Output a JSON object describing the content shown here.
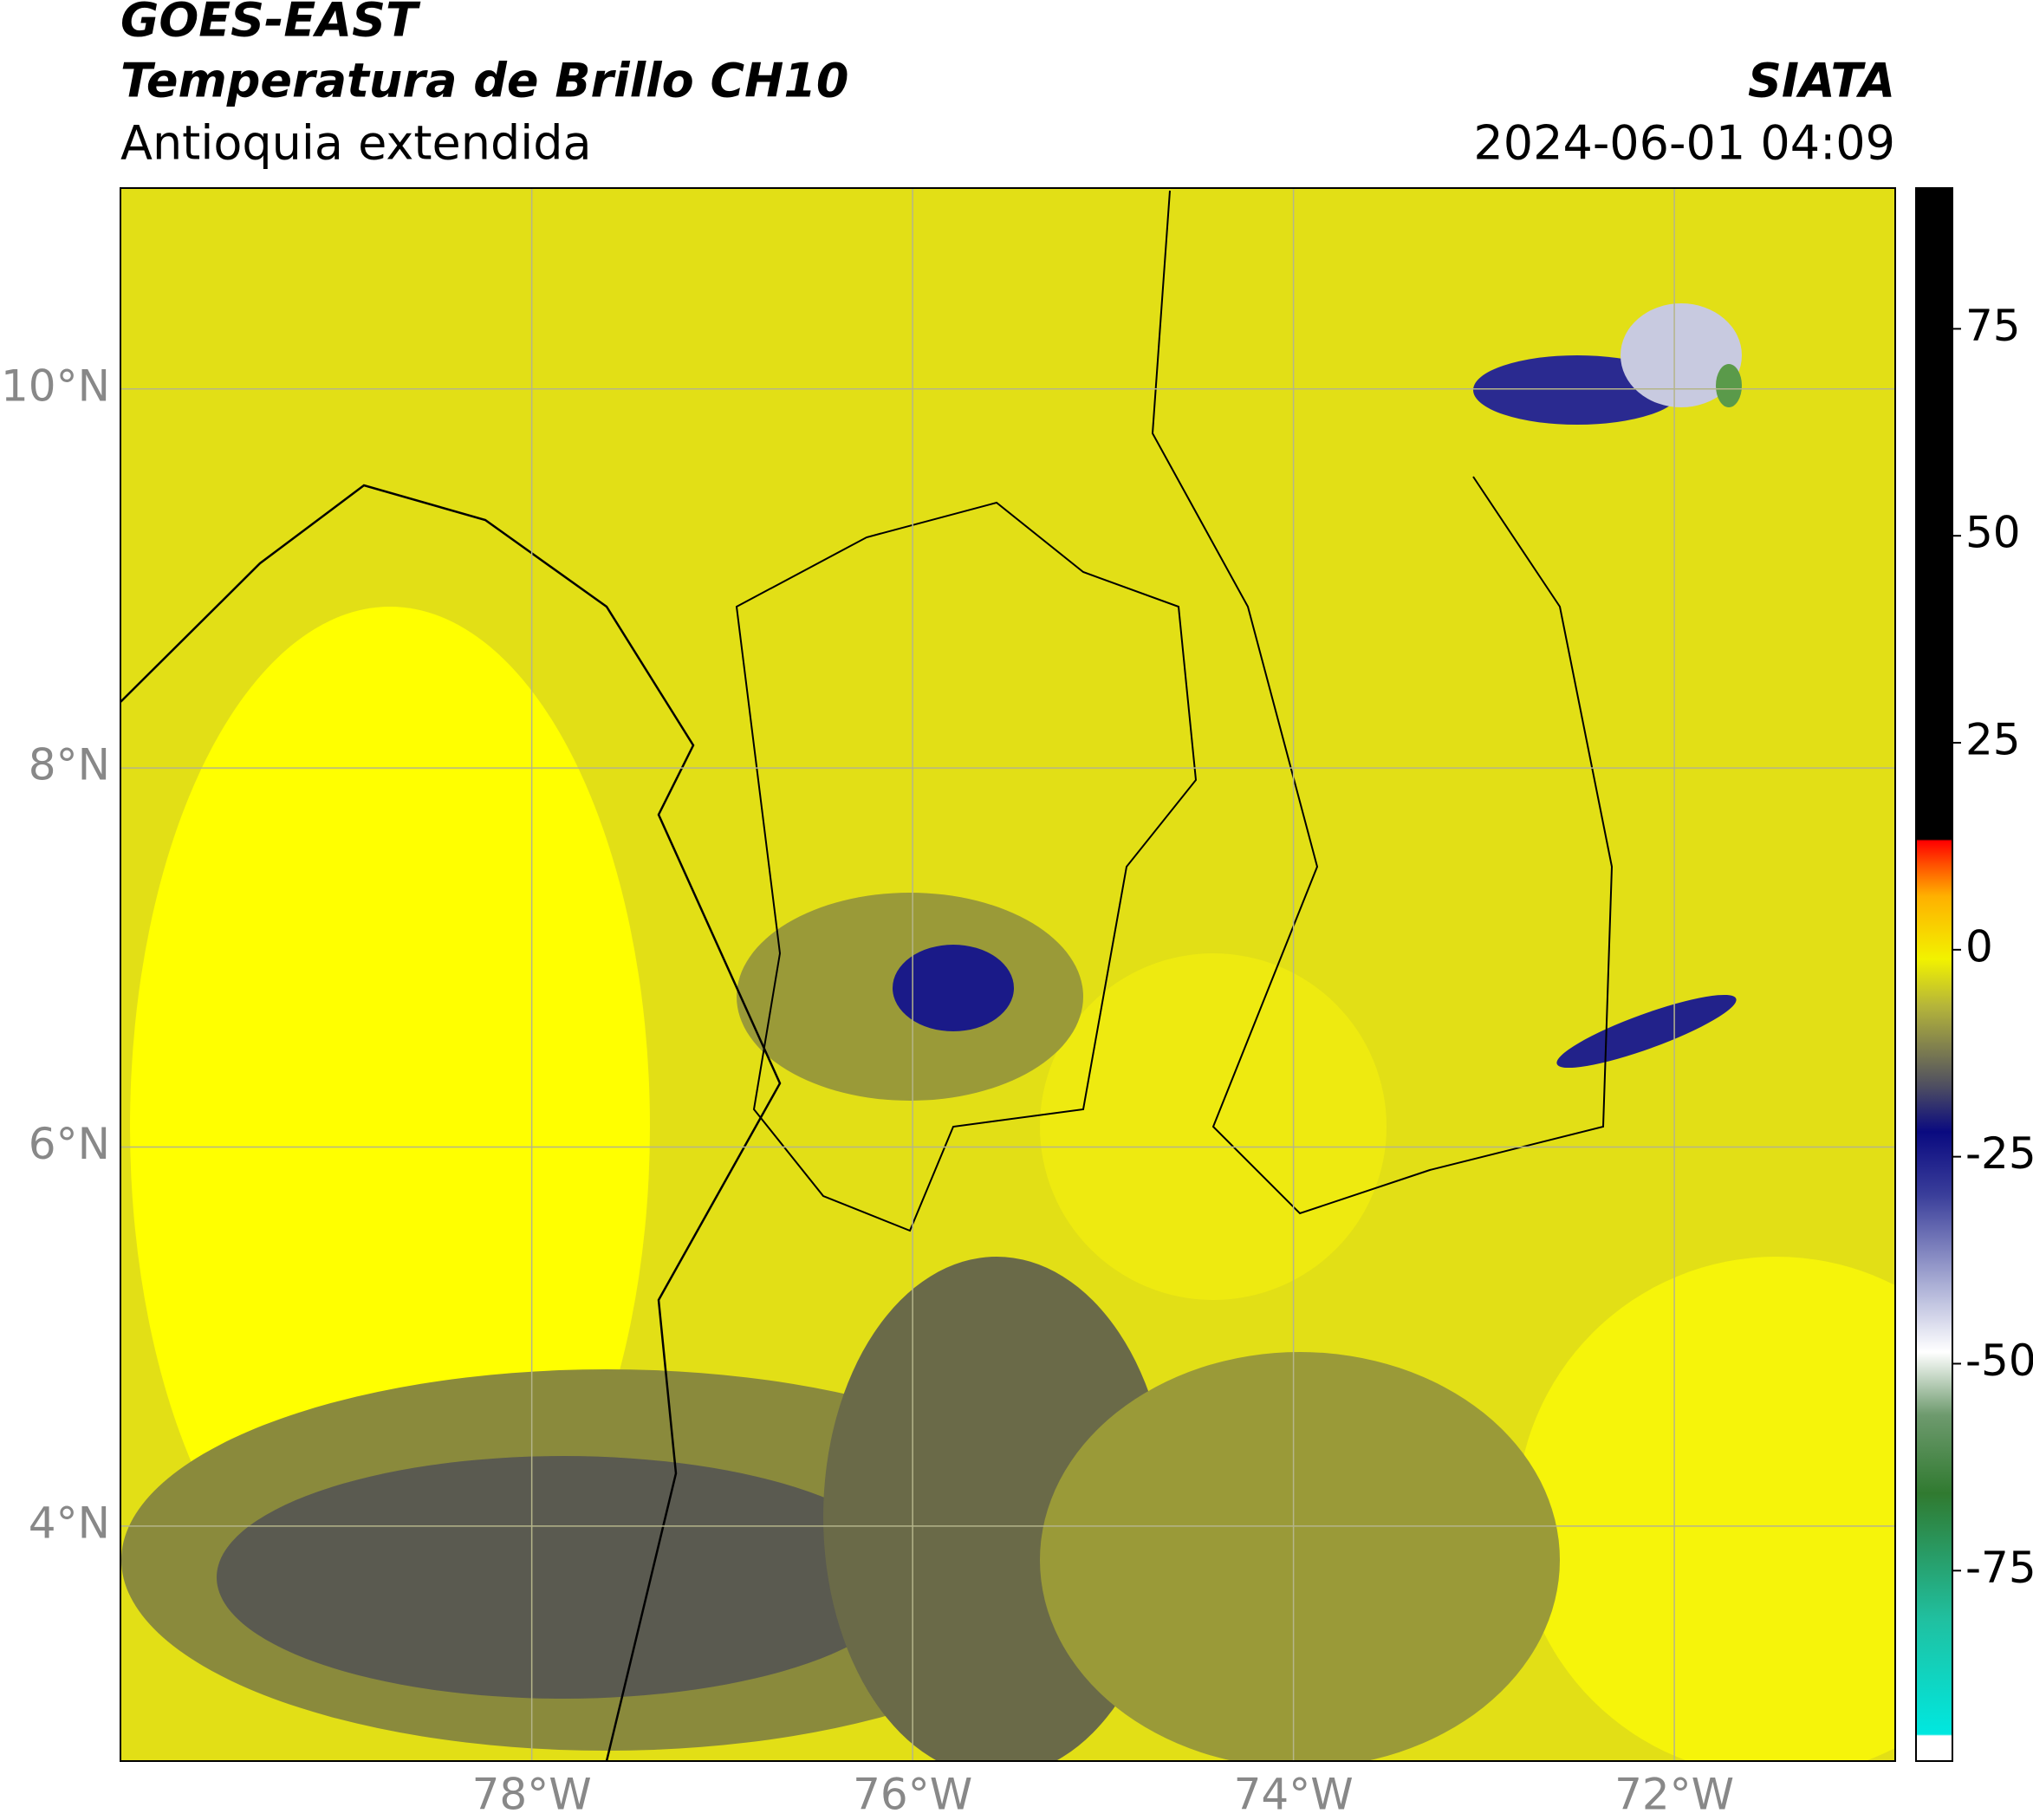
{
  "header": {
    "line1": "GOES-EAST",
    "line2": "Temperatura de Brillo CH10",
    "line3": "Antioquia extendida",
    "source": "SIATA",
    "datetime": "2024-06-01 04:09"
  },
  "chart_data": {
    "type": "map",
    "xlim": [
      -80.16,
      -70.84
    ],
    "ylim": [
      2.76,
      11.06
    ],
    "xticks": [
      {
        "value": -78,
        "label": "78°W"
      },
      {
        "value": -76,
        "label": "76°W"
      },
      {
        "value": -74,
        "label": "74°W"
      },
      {
        "value": -72,
        "label": "72°W"
      }
    ],
    "yticks": [
      {
        "value": 10,
        "label": "10°N"
      },
      {
        "value": 8,
        "label": "8°N"
      },
      {
        "value": 6,
        "label": "6°N"
      },
      {
        "value": 4,
        "label": "4°N"
      }
    ],
    "grid": true,
    "colorbar": {
      "lim": [
        -98,
        92
      ],
      "ticks": [
        75,
        50,
        25,
        0,
        -25,
        -50,
        -75
      ]
    }
  }
}
